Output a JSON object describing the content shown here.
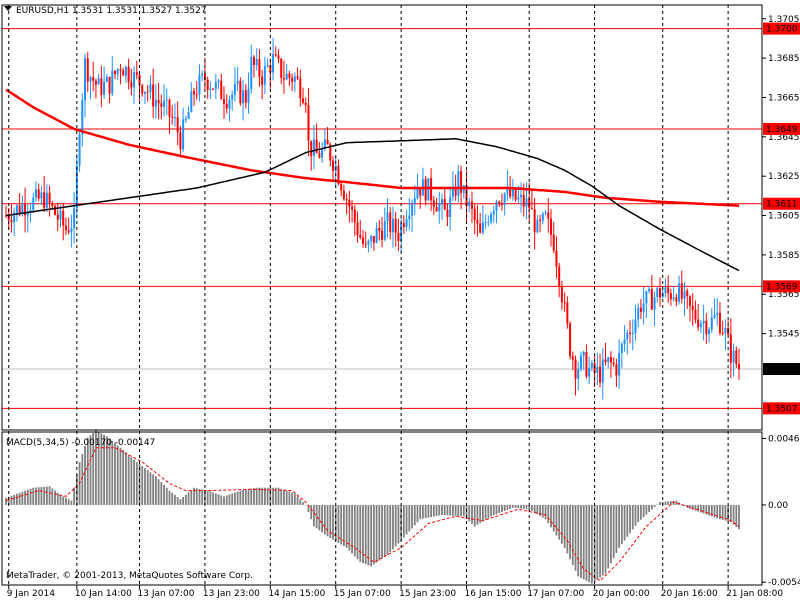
{
  "window": {
    "symbol_header": "EURUSD,H1  1.3531 1.3531 1.3527 1.3527",
    "copyright": "MetaTrader, © 2001-2013, MetaQuotes Software Corp."
  },
  "colors": {
    "background": "#ffffff",
    "bull_candle": "#1e90ff",
    "bear_candle": "#ff0000",
    "grid": "#000000",
    "level_line": "#ff0000",
    "ma_slow": "#ff0000",
    "ma_fast": "#000000",
    "current_price_line": "#c0c0c0",
    "macd_hist": "#808080",
    "macd_signal": "#ff0000"
  },
  "chart_data": [
    {
      "type": "candlestick",
      "symbol": "EURUSD",
      "timeframe": "H1",
      "ylim": [
        1.3496,
        1.3712
      ],
      "yticks": [
        "1.3705",
        "1.3685",
        "1.3665",
        "1.3645",
        "1.3625",
        "1.3605",
        "1.3585",
        "1.3565",
        "1.3545"
      ],
      "xticks": [
        "9 Jan 2014",
        "10 Jan 14:00",
        "13 Jan 07:00",
        "13 Jan 23:00",
        "14 Jan 15:00",
        "15 Jan 07:00",
        "15 Jan 23:00",
        "16 Jan 15:00",
        "17 Jan 07:00",
        "20 Jan 00:00",
        "20 Jan 16:00",
        "21 Jan 08:00"
      ],
      "vertical_separators": [
        1,
        26,
        49,
        73,
        97,
        121,
        145,
        169,
        192,
        216,
        241,
        265
      ],
      "horizontal_levels": [
        {
          "value": 1.37,
          "label": "1.3700"
        },
        {
          "value": 1.3649,
          "label": "1.3649"
        },
        {
          "value": 1.3611,
          "label": "1.3611"
        },
        {
          "value": 1.3569,
          "label": "1.3569"
        },
        {
          "value": 1.3507,
          "label": "1.3507"
        }
      ],
      "current_price": {
        "value": 1.3527,
        "label": "1.3527"
      },
      "price_anchors": [
        [
          0,
          1.3605
        ],
        [
          6,
          1.361
        ],
        [
          14,
          1.3614
        ],
        [
          18,
          1.3606
        ],
        [
          22,
          1.3598
        ],
        [
          25,
          1.3603
        ],
        [
          27,
          1.3652
        ],
        [
          29,
          1.3682
        ],
        [
          31,
          1.3676
        ],
        [
          34,
          1.367
        ],
        [
          38,
          1.3672
        ],
        [
          42,
          1.3682
        ],
        [
          46,
          1.3676
        ],
        [
          50,
          1.3672
        ],
        [
          54,
          1.3665
        ],
        [
          58,
          1.366
        ],
        [
          62,
          1.3652
        ],
        [
          64,
          1.3644
        ],
        [
          66,
          1.3652
        ],
        [
          69,
          1.3668
        ],
        [
          73,
          1.3675
        ],
        [
          77,
          1.367
        ],
        [
          81,
          1.3665
        ],
        [
          85,
          1.3668
        ],
        [
          88,
          1.3665
        ],
        [
          90,
          1.3682
        ],
        [
          94,
          1.3676
        ],
        [
          98,
          1.3684
        ],
        [
          102,
          1.3676
        ],
        [
          106,
          1.3675
        ],
        [
          110,
          1.3666
        ],
        [
          111,
          1.3641
        ],
        [
          114,
          1.3636
        ],
        [
          118,
          1.3639
        ],
        [
          121,
          1.363
        ],
        [
          125,
          1.3614
        ],
        [
          129,
          1.3598
        ],
        [
          132,
          1.3587
        ],
        [
          136,
          1.3596
        ],
        [
          140,
          1.3601
        ],
        [
          144,
          1.3596
        ],
        [
          147,
          1.3608
        ],
        [
          151,
          1.362
        ],
        [
          155,
          1.3618
        ],
        [
          158,
          1.3612
        ],
        [
          161,
          1.3606
        ],
        [
          164,
          1.3614
        ],
        [
          166,
          1.3624
        ],
        [
          168,
          1.3615
        ],
        [
          171,
          1.3606
        ],
        [
          174,
          1.3594
        ],
        [
          177,
          1.3606
        ],
        [
          180,
          1.3614
        ],
        [
          183,
          1.3616
        ],
        [
          186,
          1.3614
        ],
        [
          189,
          1.3612
        ],
        [
          192,
          1.361
        ],
        [
          195,
          1.3597
        ],
        [
          198,
          1.3603
        ],
        [
          201,
          1.3592
        ],
        [
          203,
          1.3575
        ],
        [
          205,
          1.3556
        ],
        [
          207,
          1.3538
        ],
        [
          209,
          1.3528
        ],
        [
          212,
          1.353
        ],
        [
          215,
          1.3525
        ],
        [
          218,
          1.3525
        ],
        [
          221,
          1.353
        ],
        [
          224,
          1.3528
        ],
        [
          227,
          1.3542
        ],
        [
          230,
          1.355
        ],
        [
          233,
          1.356
        ],
        [
          236,
          1.3562
        ],
        [
          240,
          1.3566
        ],
        [
          243,
          1.3565
        ],
        [
          246,
          1.3567
        ],
        [
          249,
          1.3561
        ],
        [
          252,
          1.3555
        ],
        [
          255,
          1.3552
        ],
        [
          258,
          1.355
        ],
        [
          261,
          1.3554
        ],
        [
          264,
          1.3545
        ],
        [
          266,
          1.3535
        ],
        [
          268,
          1.353
        ],
        [
          269,
          1.3527
        ]
      ],
      "series": [
        {
          "name": "",
          "kind": "moving_average",
          "color": "#ff0000",
          "points": [
            [
              0,
              1.3669
            ],
            [
              10,
              1.366
            ],
            [
              25,
              1.3649
            ],
            [
              45,
              1.3641
            ],
            [
              65,
              1.3635
            ],
            [
              90,
              1.3628
            ],
            [
              110,
              1.3624
            ],
            [
              125,
              1.3622
            ],
            [
              145,
              1.3619
            ],
            [
              170,
              1.3619
            ],
            [
              185,
              1.3619
            ],
            [
              205,
              1.3617
            ],
            [
              220,
              1.3614
            ],
            [
              240,
              1.3612
            ],
            [
              269,
              1.361
            ]
          ]
        },
        {
          "name": "",
          "kind": "moving_average",
          "color": "#000000",
          "points": [
            [
              0,
              1.3605
            ],
            [
              25,
              1.361
            ],
            [
              45,
              1.3614
            ],
            [
              70,
              1.3619
            ],
            [
              95,
              1.3627
            ],
            [
              110,
              1.3637
            ],
            [
              125,
              1.3642
            ],
            [
              145,
              1.3643
            ],
            [
              165,
              1.3644
            ],
            [
              180,
              1.364
            ],
            [
              195,
              1.3634
            ],
            [
              205,
              1.3628
            ],
            [
              215,
              1.362
            ],
            [
              225,
              1.361
            ],
            [
              240,
              1.3598
            ],
            [
              255,
              1.3587
            ],
            [
              269,
              1.3577
            ]
          ]
        }
      ]
    },
    {
      "type": "histogram",
      "label": "MACD(5,34,5) -0.00170 -0.00147",
      "ylim": [
        -0.0056,
        0.0051
      ],
      "yticks": [
        "0.00465",
        "0.00",
        "-0.0054"
      ],
      "macd_anchors": [
        [
          0,
          0.0005
        ],
        [
          10,
          0.0012
        ],
        [
          16,
          0.0013
        ],
        [
          20,
          0.0007
        ],
        [
          24,
          0.0003
        ],
        [
          27,
          0.003
        ],
        [
          30,
          0.0047
        ],
        [
          33,
          0.0052
        ],
        [
          37,
          0.0048
        ],
        [
          42,
          0.004
        ],
        [
          48,
          0.003
        ],
        [
          55,
          0.002
        ],
        [
          60,
          0.001
        ],
        [
          64,
          0.0004
        ],
        [
          69,
          0.0012
        ],
        [
          74,
          0.001
        ],
        [
          80,
          0.0006
        ],
        [
          86,
          0.001
        ],
        [
          92,
          0.0012
        ],
        [
          100,
          0.0012
        ],
        [
          106,
          0.0008
        ],
        [
          110,
          0.0
        ],
        [
          113,
          -0.0015
        ],
        [
          118,
          -0.0022
        ],
        [
          125,
          -0.003
        ],
        [
          130,
          -0.004
        ],
        [
          134,
          -0.0043
        ],
        [
          140,
          -0.0035
        ],
        [
          145,
          -0.0025
        ],
        [
          152,
          -0.001
        ],
        [
          160,
          -0.0007
        ],
        [
          168,
          -0.0008
        ],
        [
          172,
          -0.0015
        ],
        [
          178,
          -0.0008
        ],
        [
          186,
          -0.0002
        ],
        [
          192,
          -0.0003
        ],
        [
          198,
          -0.001
        ],
        [
          205,
          -0.003
        ],
        [
          210,
          -0.005
        ],
        [
          215,
          -0.0055
        ],
        [
          220,
          -0.0048
        ],
        [
          225,
          -0.003
        ],
        [
          232,
          -0.0012
        ],
        [
          240,
          0.0002
        ],
        [
          246,
          0.0003
        ],
        [
          250,
          -0.0002
        ],
        [
          256,
          -0.0006
        ],
        [
          262,
          -0.001
        ],
        [
          266,
          -0.0012
        ],
        [
          269,
          -0.0017
        ]
      ],
      "signal_anchors": [
        [
          0,
          0.0003
        ],
        [
          12,
          0.001
        ],
        [
          22,
          0.0006
        ],
        [
          27,
          0.0015
        ],
        [
          33,
          0.004
        ],
        [
          40,
          0.004
        ],
        [
          50,
          0.003
        ],
        [
          60,
          0.0015
        ],
        [
          66,
          0.001
        ],
        [
          75,
          0.001
        ],
        [
          90,
          0.0011
        ],
        [
          105,
          0.001
        ],
        [
          110,
          0.0002
        ],
        [
          118,
          -0.0018
        ],
        [
          128,
          -0.003
        ],
        [
          135,
          -0.004
        ],
        [
          145,
          -0.003
        ],
        [
          155,
          -0.0013
        ],
        [
          165,
          -0.0008
        ],
        [
          175,
          -0.0011
        ],
        [
          188,
          -0.0003
        ],
        [
          198,
          -0.0007
        ],
        [
          206,
          -0.0025
        ],
        [
          212,
          -0.0045
        ],
        [
          218,
          -0.0053
        ],
        [
          225,
          -0.004
        ],
        [
          235,
          -0.0015
        ],
        [
          245,
          0.0002
        ],
        [
          255,
          -0.0004
        ],
        [
          265,
          -0.001
        ],
        [
          269,
          -0.0015
        ]
      ]
    }
  ]
}
